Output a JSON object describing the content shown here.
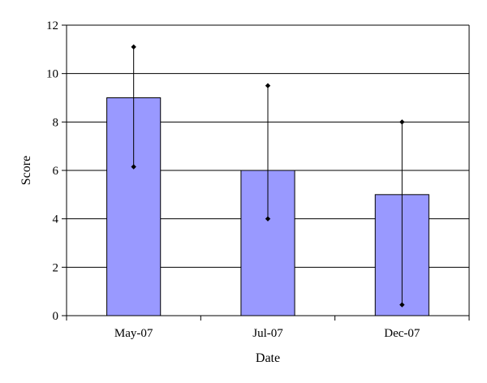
{
  "chart_data": {
    "type": "bar",
    "categories": [
      "May-07",
      "Jul-07",
      "Dec-07"
    ],
    "values": [
      9,
      6,
      5
    ],
    "error_high": [
      11.1,
      9.5,
      8.0
    ],
    "error_low": [
      6.15,
      4.0,
      0.45
    ],
    "xlabel": "Date",
    "ylabel": "Score",
    "ylim": [
      0,
      12
    ],
    "yticks": [
      0,
      2,
      4,
      6,
      8,
      10,
      12
    ],
    "grid": true,
    "legend": "none",
    "colors": {
      "bar_fill": "#9999ff",
      "bar_stroke": "#000000",
      "grid": "#000000",
      "error_bar": "#000000"
    }
  }
}
